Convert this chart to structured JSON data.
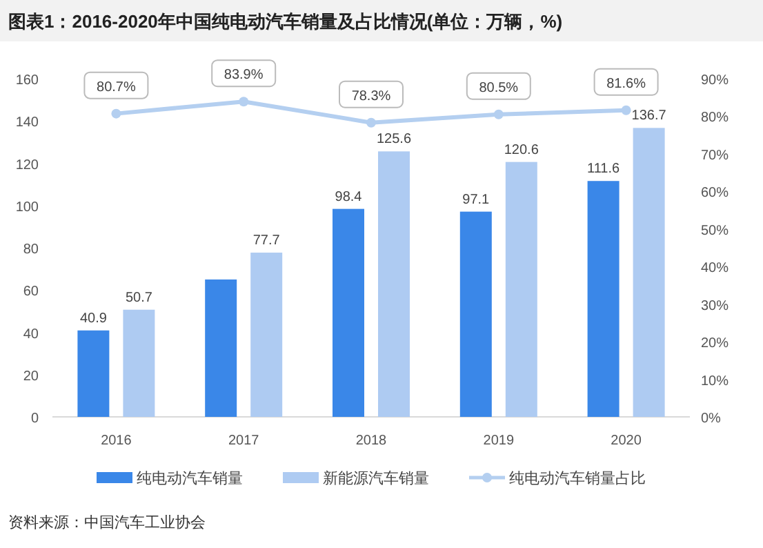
{
  "chart_data": {
    "type": "bar",
    "title": "图表1：2016-2020年中国纯电动汽车销量及占比情况(单位：万辆，%)",
    "categories": [
      "2016",
      "2017",
      "2018",
      "2019",
      "2020"
    ],
    "series": [
      {
        "name": "纯电动汽车销量",
        "color": "#3a87e8",
        "values": [
          40.9,
          65,
          98.4,
          97.1,
          111.6
        ],
        "value_labels": [
          "40.9",
          null,
          "98.4",
          "97.1",
          "111.6"
        ]
      },
      {
        "name": "新能源汽车销量",
        "color": "#aecbf2",
        "values": [
          50.7,
          77.7,
          125.6,
          120.6,
          136.7
        ],
        "value_labels": [
          "50.7",
          "77.7",
          "125.6",
          "120.6",
          "136.7"
        ]
      },
      {
        "name": "纯电动汽车销量占比",
        "type": "line",
        "axis": "y2",
        "color": "#b4cff0",
        "marker": "circle",
        "values": [
          80.7,
          83.9,
          78.3,
          80.5,
          81.6
        ],
        "value_labels": [
          "80.7%",
          "83.9%",
          "78.3%",
          "80.5%",
          "81.6%"
        ]
      }
    ],
    "ylim": [
      0,
      160
    ],
    "yticks": [
      0,
      20,
      40,
      60,
      80,
      100,
      120,
      140,
      160
    ],
    "y2lim": [
      0,
      90
    ],
    "y2ticks": [
      {
        "value": 0,
        "label": "0%"
      },
      {
        "value": 10,
        "label": "10%"
      },
      {
        "value": 20,
        "label": "20%"
      },
      {
        "value": 30,
        "label": "30%"
      },
      {
        "value": 40,
        "label": "40%"
      },
      {
        "value": 50,
        "label": "50%"
      },
      {
        "value": 60,
        "label": "60%"
      },
      {
        "value": 70,
        "label": "70%"
      },
      {
        "value": 80,
        "label": "80%"
      },
      {
        "value": 90,
        "label": "90%"
      }
    ],
    "grid": false,
    "legend": "bottom",
    "annotations": [
      "资料来源：中国汽车工业协会"
    ]
  }
}
